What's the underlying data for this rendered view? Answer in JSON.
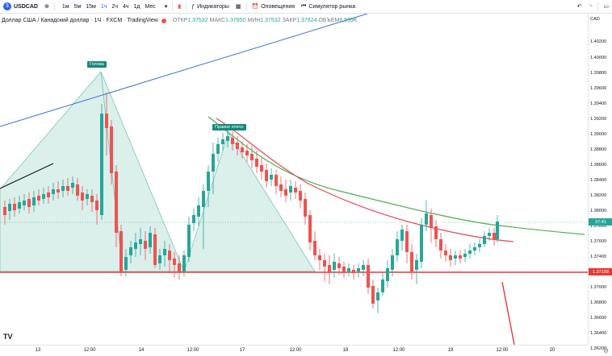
{
  "toolbar": {
    "symbol": "USDCAD",
    "intervals": [
      "1м",
      "5м",
      "15м",
      "1ч",
      "2ч",
      "4ч",
      "1д",
      "Мес"
    ],
    "active_interval": "1ч",
    "indicators_label": "Индикаторы",
    "alerts_label": "Оповещения",
    "replay_label": "Симулятор рынка"
  },
  "legend": {
    "title": "Доллар США / Канадский доллар · 1Ч · FXCM · TradingView",
    "open_lbl": "ОТКР",
    "open": "1.37532",
    "high_lbl": "МАКС",
    "high": "1.37850",
    "low_lbl": "МИН",
    "low": "1.37532",
    "close_lbl": "ЗАКР",
    "close": "1.37824",
    "vol_lbl": "ОБЪЕМ",
    "vol": "6.599K"
  },
  "price_scale": {
    "currency": "CAD",
    "ticks": [
      "1.40200",
      "1.40000",
      "1.39800",
      "1.39600",
      "1.39400",
      "1.39200",
      "1.39000",
      "1.38800",
      "1.38600",
      "1.38400",
      "1.38200",
      "1.38000",
      "1.37800",
      "1.37600",
      "1.37400",
      "1.37200",
      "1.37000",
      "1.36800",
      "1.36600",
      "1.36400",
      "1.36200"
    ],
    "last_price_badge": "37:41",
    "level_badge": "1.37158"
  },
  "time_scale": {
    "ticks": [
      "13",
      "12:00",
      "14",
      "12:00",
      "17",
      "12:00",
      "18",
      "12:00",
      "19",
      "12:00",
      "20"
    ]
  },
  "patterns": {
    "head": "Голова",
    "right_shoulder": "Правое плечо"
  },
  "colors": {
    "up": "#26a69a",
    "down": "#ef5350",
    "level": "#e53935",
    "trend_blue": "#3b6fd6",
    "ma_green": "#4caf50",
    "ma_red": "#e04a5a",
    "pattern_fill": "#c8e8e1"
  },
  "logo": "TV"
}
